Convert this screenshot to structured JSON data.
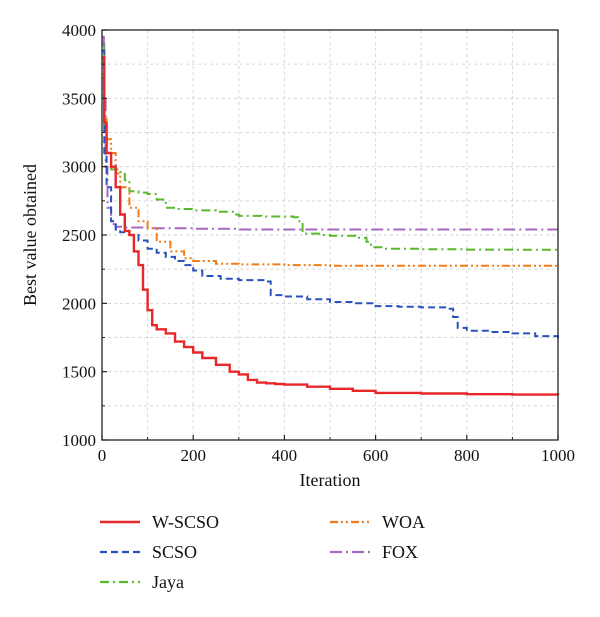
{
  "chart_data": {
    "type": "line",
    "xlabel": "Iteration",
    "ylabel": "Best value obtained",
    "xlim": [
      0,
      1000
    ],
    "ylim": [
      1000,
      4000
    ],
    "xticks": [
      0,
      200,
      400,
      600,
      800,
      1000
    ],
    "yticks": [
      1000,
      1500,
      2000,
      2500,
      3000,
      3500,
      4000
    ],
    "grid": true,
    "legend_position": "bottom",
    "series": [
      {
        "name": "W-SCSO",
        "color": "#e8272a",
        "dash": "solid",
        "x": [
          0,
          5,
          10,
          20,
          30,
          40,
          50,
          60,
          70,
          80,
          90,
          100,
          110,
          120,
          140,
          160,
          180,
          200,
          220,
          250,
          280,
          300,
          320,
          340,
          360,
          380,
          400,
          450,
          500,
          550,
          600,
          700,
          800,
          900,
          1000
        ],
        "y": [
          3800,
          3320,
          3100,
          3000,
          2850,
          2650,
          2530,
          2500,
          2380,
          2280,
          2100,
          1950,
          1840,
          1810,
          1780,
          1720,
          1680,
          1640,
          1600,
          1550,
          1500,
          1480,
          1440,
          1420,
          1415,
          1410,
          1405,
          1390,
          1375,
          1360,
          1345,
          1340,
          1335,
          1332,
          1330
        ]
      },
      {
        "name": "SCSO",
        "color": "#2a52be",
        "dash": "dashed",
        "x": [
          0,
          5,
          10,
          20,
          30,
          40,
          60,
          80,
          100,
          120,
          140,
          160,
          180,
          200,
          220,
          260,
          300,
          360,
          370,
          400,
          450,
          500,
          550,
          600,
          650,
          700,
          760,
          770,
          780,
          800,
          850,
          900,
          950,
          1000
        ],
        "y": [
          3850,
          3100,
          2850,
          2600,
          2540,
          2520,
          2500,
          2460,
          2400,
          2370,
          2340,
          2310,
          2280,
          2240,
          2200,
          2180,
          2170,
          2160,
          2060,
          2050,
          2030,
          2010,
          2000,
          1980,
          1975,
          1970,
          1960,
          1900,
          1820,
          1800,
          1790,
          1780,
          1760,
          1745
        ]
      },
      {
        "name": "Jaya",
        "color": "#5ab82e",
        "dash": "dashdot",
        "x": [
          0,
          5,
          10,
          20,
          40,
          50,
          60,
          80,
          100,
          120,
          140,
          160,
          200,
          250,
          290,
          300,
          350,
          420,
          430,
          440,
          480,
          500,
          560,
          580,
          590,
          620,
          700,
          800,
          900,
          1000
        ],
        "y": [
          3900,
          3250,
          3100,
          2980,
          2960,
          2900,
          2820,
          2810,
          2800,
          2760,
          2700,
          2690,
          2680,
          2670,
          2650,
          2640,
          2635,
          2630,
          2600,
          2510,
          2500,
          2495,
          2480,
          2450,
          2410,
          2400,
          2395,
          2393,
          2392,
          2392
        ]
      },
      {
        "name": "WOA",
        "color": "#f07d1a",
        "dash": "dashdotdot",
        "x": [
          0,
          5,
          10,
          20,
          30,
          40,
          60,
          80,
          100,
          120,
          150,
          180,
          200,
          250,
          300,
          400,
          500,
          600,
          700,
          800,
          900,
          1000
        ],
        "y": [
          3650,
          3350,
          3200,
          3100,
          2950,
          2850,
          2700,
          2600,
          2550,
          2450,
          2380,
          2330,
          2310,
          2290,
          2285,
          2280,
          2275,
          2275,
          2275,
          2275,
          2275,
          2275
        ]
      },
      {
        "name": "FOX",
        "color": "#a569bd",
        "dash": "longdashdot",
        "x": [
          0,
          4,
          8,
          12,
          20,
          30,
          50,
          100,
          200,
          300,
          400,
          600,
          800,
          1000
        ],
        "y": [
          3950,
          3500,
          3000,
          2700,
          2580,
          2560,
          2555,
          2550,
          2545,
          2540,
          2540,
          2540,
          2540,
          2540
        ]
      }
    ]
  }
}
